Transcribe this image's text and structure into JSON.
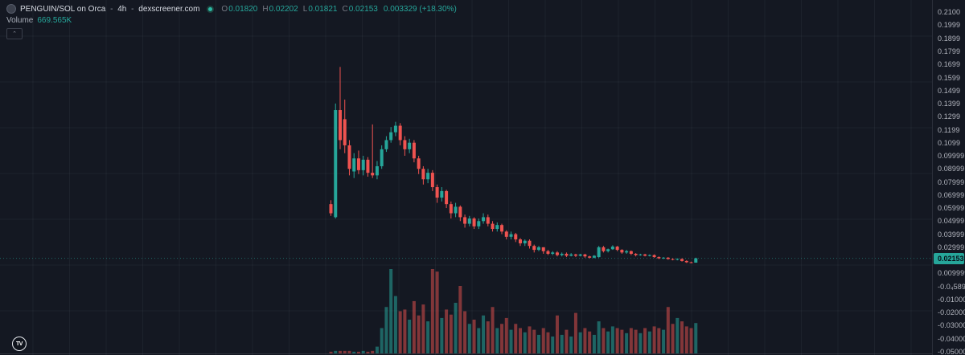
{
  "legend": {
    "symbol": "PENGUIN/SOL on Orca",
    "interval": "4h",
    "source": "dexscreener.com",
    "separator": "-",
    "ohlc": [
      {
        "k": "O",
        "v": "0.01820"
      },
      {
        "k": "H",
        "v": "0.02202"
      },
      {
        "k": "L",
        "v": "0.01821"
      },
      {
        "k": "C",
        "v": "0.02153"
      }
    ],
    "change": "0.003329",
    "change_pct": "(+18.30%)",
    "volume_label": "Volume",
    "volume_value": "669.565K",
    "collapse_glyph": "⌃"
  },
  "watermark": {
    "logo_text": "TV"
  },
  "colors": {
    "background": "#141822",
    "up": "#26a69a",
    "down": "#ef5350",
    "volume_up": "rgba(38,166,154,0.55)",
    "volume_down": "rgba(239,83,80,0.5)",
    "grid": "rgba(160,166,182,0.07)",
    "axis_text": "#b2b5be",
    "badge_bg": "#26a69a",
    "price_line": "rgba(38,166,154,0.55)"
  },
  "price_axis": {
    "labels": [
      {
        "text": "0.2100",
        "value": 0.21
      },
      {
        "text": "0.1999",
        "value": 0.1999
      },
      {
        "text": "0.1899",
        "value": 0.1899
      },
      {
        "text": "0.1799",
        "value": 0.1799
      },
      {
        "text": "0.1699",
        "value": 0.1699
      },
      {
        "text": "0.1599",
        "value": 0.1599
      },
      {
        "text": "0.1499",
        "value": 0.1499
      },
      {
        "text": "0.1399",
        "value": 0.1399
      },
      {
        "text": "0.1299",
        "value": 0.1299
      },
      {
        "text": "0.1199",
        "value": 0.1199
      },
      {
        "text": "0.1099",
        "value": 0.1099
      },
      {
        "text": "0.09999",
        "value": 0.09999
      },
      {
        "text": "0.08999",
        "value": 0.08999
      },
      {
        "text": "0.07999",
        "value": 0.07999
      },
      {
        "text": "0.06999",
        "value": 0.06999
      },
      {
        "text": "0.05999",
        "value": 0.05999
      },
      {
        "text": "0.04999",
        "value": 0.04999
      },
      {
        "text": "0.03999",
        "value": 0.03999
      },
      {
        "text": "0.02999",
        "value": 0.02999
      },
      {
        "text": "0.009999",
        "value": 0.009999
      },
      {
        "text": "-0.0₄5898",
        "value": -5.898e-05
      },
      {
        "text": "-0.01000",
        "value": -0.01
      },
      {
        "text": "-0.02000",
        "value": -0.02
      },
      {
        "text": "-0.03000",
        "value": -0.03
      },
      {
        "text": "-0.04000",
        "value": -0.04
      },
      {
        "text": "-0.05000",
        "value": -0.05
      }
    ],
    "last_price": {
      "text": "0.02153",
      "value": 0.02153
    }
  },
  "chart_data": {
    "type": "candlestick",
    "title": "PENGUIN/SOL on Orca - 4h - dexscreener.com",
    "interval": "4h",
    "last_close": 0.02153,
    "last_candle_ohlc": {
      "o": 0.0182,
      "h": 0.02202,
      "l": 0.01821,
      "c": 0.02153
    },
    "change_abs": 0.003329,
    "change_pct": 18.3,
    "last_volume_label": "669.565K",
    "ylim": [
      -0.05,
      0.21
    ],
    "grid": true,
    "volume_scale": "relative 0-1 of max visible bar",
    "candles_format": [
      "open",
      "high",
      "low",
      "close",
      "relative_volume"
    ],
    "candles": [
      [
        0.063,
        0.066,
        0.054,
        0.056,
        0.02
      ],
      [
        0.053,
        0.14,
        0.052,
        0.135,
        0.03
      ],
      [
        0.135,
        0.168,
        0.105,
        0.112,
        0.03
      ],
      [
        0.128,
        0.143,
        0.102,
        0.108,
        0.03
      ],
      [
        0.108,
        0.112,
        0.085,
        0.09,
        0.03
      ],
      [
        0.088,
        0.102,
        0.083,
        0.098,
        0.02
      ],
      [
        0.098,
        0.104,
        0.086,
        0.089,
        0.02
      ],
      [
        0.089,
        0.1,
        0.085,
        0.097,
        0.03
      ],
      [
        0.097,
        0.099,
        0.084,
        0.087,
        0.02
      ],
      [
        0.087,
        0.124,
        0.083,
        0.085,
        0.03
      ],
      [
        0.085,
        0.096,
        0.082,
        0.092,
        0.08
      ],
      [
        0.092,
        0.108,
        0.09,
        0.105,
        0.3
      ],
      [
        0.105,
        0.115,
        0.103,
        0.112,
        0.55
      ],
      [
        0.112,
        0.122,
        0.11,
        0.118,
        1.0
      ],
      [
        0.118,
        0.126,
        0.115,
        0.123,
        0.68
      ],
      [
        0.123,
        0.125,
        0.108,
        0.112,
        0.5
      ],
      [
        0.112,
        0.115,
        0.1,
        0.105,
        0.52
      ],
      [
        0.105,
        0.113,
        0.102,
        0.11,
        0.4
      ],
      [
        0.11,
        0.112,
        0.095,
        0.098,
        0.62
      ],
      [
        0.098,
        0.1,
        0.086,
        0.09,
        0.45
      ],
      [
        0.09,
        0.092,
        0.078,
        0.082,
        0.58
      ],
      [
        0.082,
        0.09,
        0.079,
        0.087,
        0.38
      ],
      [
        0.087,
        0.089,
        0.073,
        0.076,
        1.0
      ],
      [
        0.076,
        0.078,
        0.064,
        0.068,
        0.97
      ],
      [
        0.068,
        0.076,
        0.065,
        0.073,
        0.42
      ],
      [
        0.073,
        0.074,
        0.06,
        0.063,
        0.52
      ],
      [
        0.063,
        0.065,
        0.052,
        0.056,
        0.46
      ],
      [
        0.056,
        0.064,
        0.053,
        0.061,
        0.6
      ],
      [
        0.061,
        0.062,
        0.05,
        0.053,
        0.8
      ],
      [
        0.053,
        0.055,
        0.045,
        0.048,
        0.5
      ],
      [
        0.048,
        0.054,
        0.046,
        0.052,
        0.35
      ],
      [
        0.052,
        0.053,
        0.044,
        0.046,
        0.4
      ],
      [
        0.046,
        0.052,
        0.044,
        0.05,
        0.3
      ],
      [
        0.05,
        0.056,
        0.048,
        0.053,
        0.45
      ],
      [
        0.053,
        0.055,
        0.046,
        0.048,
        0.38
      ],
      [
        0.048,
        0.05,
        0.042,
        0.044,
        0.55
      ],
      [
        0.044,
        0.049,
        0.042,
        0.047,
        0.3
      ],
      [
        0.047,
        0.048,
        0.04,
        0.042,
        0.35
      ],
      [
        0.042,
        0.043,
        0.036,
        0.038,
        0.42
      ],
      [
        0.038,
        0.042,
        0.036,
        0.04,
        0.28
      ],
      [
        0.04,
        0.041,
        0.034,
        0.036,
        0.35
      ],
      [
        0.036,
        0.037,
        0.031,
        0.033,
        0.3
      ],
      [
        0.033,
        0.036,
        0.031,
        0.035,
        0.25
      ],
      [
        0.035,
        0.036,
        0.029,
        0.031,
        0.32
      ],
      [
        0.031,
        0.032,
        0.026,
        0.028,
        0.28
      ],
      [
        0.028,
        0.031,
        0.027,
        0.03,
        0.22
      ],
      [
        0.03,
        0.03,
        0.025,
        0.027,
        0.3
      ],
      [
        0.027,
        0.028,
        0.024,
        0.025,
        0.25
      ],
      [
        0.025,
        0.027,
        0.024,
        0.026,
        0.2
      ],
      [
        0.026,
        0.027,
        0.023,
        0.024,
        0.45
      ],
      [
        0.024,
        0.026,
        0.023,
        0.025,
        0.22
      ],
      [
        0.025,
        0.026,
        0.0225,
        0.0235,
        0.28
      ],
      [
        0.0235,
        0.0255,
        0.023,
        0.0245,
        0.2
      ],
      [
        0.0245,
        0.025,
        0.0225,
        0.0235,
        0.48
      ],
      [
        0.0235,
        0.025,
        0.023,
        0.0245,
        0.25
      ],
      [
        0.0245,
        0.025,
        0.022,
        0.023,
        0.3
      ],
      [
        0.023,
        0.0235,
        0.0215,
        0.022,
        0.26
      ],
      [
        0.022,
        0.024,
        0.0215,
        0.0235,
        0.22
      ],
      [
        0.0225,
        0.031,
        0.022,
        0.03,
        0.38
      ],
      [
        0.03,
        0.031,
        0.026,
        0.027,
        0.3
      ],
      [
        0.027,
        0.029,
        0.026,
        0.0285,
        0.26
      ],
      [
        0.0285,
        0.0315,
        0.028,
        0.0305,
        0.32
      ],
      [
        0.0305,
        0.031,
        0.027,
        0.028,
        0.3
      ],
      [
        0.028,
        0.0285,
        0.025,
        0.026,
        0.28
      ],
      [
        0.026,
        0.028,
        0.025,
        0.027,
        0.24
      ],
      [
        0.027,
        0.0275,
        0.024,
        0.025,
        0.3
      ],
      [
        0.025,
        0.0255,
        0.023,
        0.024,
        0.28
      ],
      [
        0.024,
        0.025,
        0.0235,
        0.0245,
        0.24
      ],
      [
        0.0245,
        0.025,
        0.023,
        0.0235,
        0.3
      ],
      [
        0.0235,
        0.0245,
        0.023,
        0.024,
        0.26
      ],
      [
        0.024,
        0.0245,
        0.022,
        0.0225,
        0.32
      ],
      [
        0.0225,
        0.023,
        0.021,
        0.0215,
        0.3
      ],
      [
        0.0215,
        0.0225,
        0.021,
        0.022,
        0.28
      ],
      [
        0.022,
        0.0225,
        0.0205,
        0.021,
        0.55
      ],
      [
        0.021,
        0.0215,
        0.02,
        0.0205,
        0.35
      ],
      [
        0.0205,
        0.0215,
        0.02,
        0.021,
        0.42
      ],
      [
        0.021,
        0.0215,
        0.019,
        0.0195,
        0.38
      ],
      [
        0.0195,
        0.02,
        0.018,
        0.0185,
        0.32
      ],
      [
        0.0185,
        0.019,
        0.0178,
        0.0182,
        0.3
      ],
      [
        0.0182,
        0.02202,
        0.0182,
        0.02153,
        0.36
      ]
    ]
  }
}
